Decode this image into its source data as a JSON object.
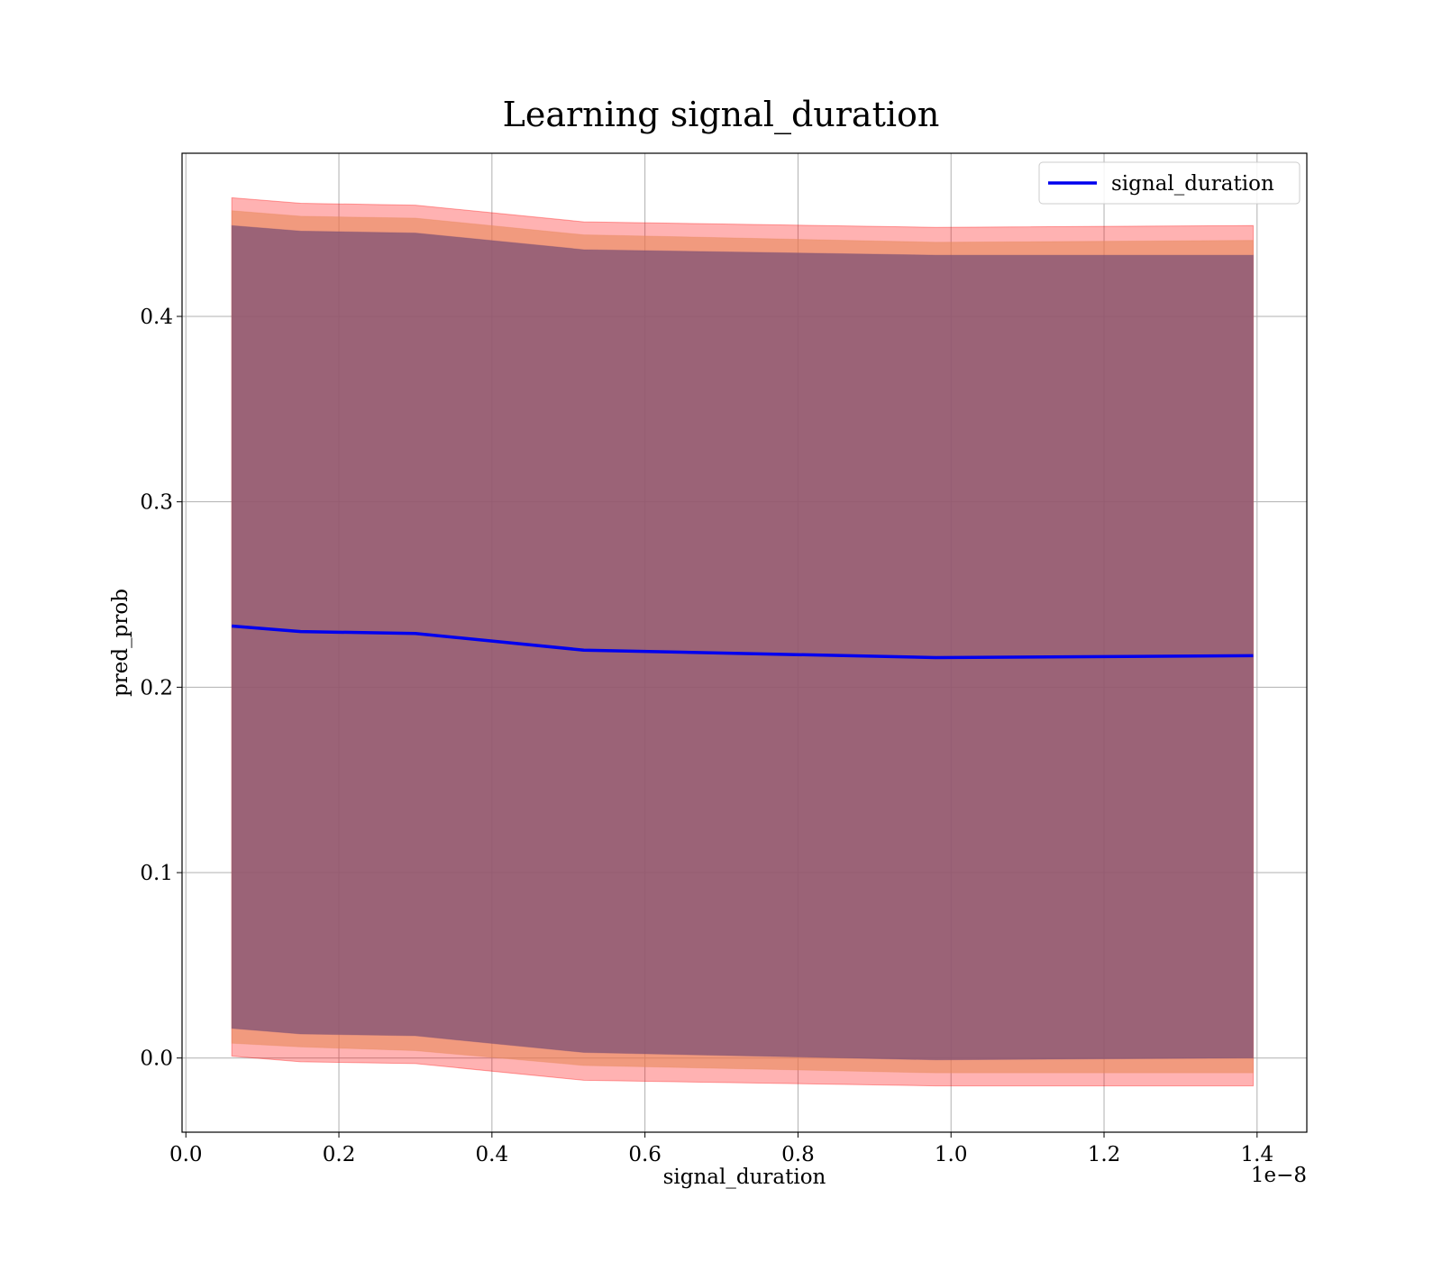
{
  "chart_data": {
    "type": "line",
    "title": "Learning signal_duration",
    "xlabel": "signal_duration",
    "ylabel": "pred_prob",
    "x_offset_text": "1e−8",
    "x_scale_factor": 1e-08,
    "xlim": [
      -5e-11,
      1.465e-08
    ],
    "ylim": [
      -0.04,
      0.488
    ],
    "grid": true,
    "legend": {
      "location": "upper right",
      "entries": [
        "signal_duration"
      ]
    },
    "x_ticks": [
      0.0,
      2e-09,
      4e-09,
      6e-09,
      8e-09,
      1e-08,
      1.2e-08,
      1.4e-08
    ],
    "x_tick_labels": [
      "0.0",
      "0.2",
      "0.4",
      "0.6",
      "0.8",
      "1.0",
      "1.2",
      "1.4"
    ],
    "y_ticks": [
      0.0,
      0.1,
      0.2,
      0.3,
      0.4
    ],
    "y_tick_labels": [
      "0.0",
      "0.1",
      "0.2",
      "0.3",
      "0.4"
    ],
    "x": [
      6e-10,
      1.5e-09,
      3e-09,
      5.2e-09,
      9.8e-09,
      1.395e-08
    ],
    "series": [
      {
        "name": "signal_duration",
        "color": "#0000ee",
        "values": [
          0.233,
          0.23,
          0.229,
          0.22,
          0.216,
          0.217
        ]
      }
    ],
    "bands": [
      {
        "color": "#ff0000",
        "opacity": 0.3,
        "upper": [
          0.464,
          0.461,
          0.46,
          0.451,
          0.448,
          0.449
        ],
        "lower": [
          0.001,
          -0.002,
          -0.003,
          -0.012,
          -0.015,
          -0.015
        ]
      },
      {
        "color": "#e88a5c",
        "opacity": 0.6,
        "upper": [
          0.457,
          0.454,
          0.453,
          0.444,
          0.44,
          0.441
        ],
        "lower": [
          0.008,
          0.006,
          0.004,
          -0.004,
          -0.008,
          -0.008
        ]
      },
      {
        "color": "#7e5075",
        "opacity": 0.75,
        "upper": [
          0.449,
          0.446,
          0.445,
          0.436,
          0.433,
          0.433
        ],
        "lower": [
          0.016,
          0.013,
          0.012,
          0.003,
          -0.001,
          0.0
        ]
      }
    ]
  }
}
